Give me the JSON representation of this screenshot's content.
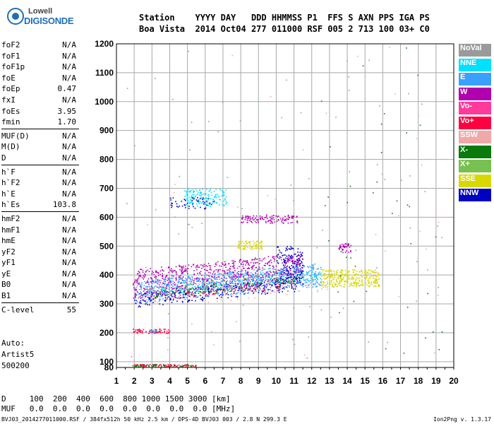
{
  "logo": {
    "line1": "Lowell",
    "line2": "DIGISONDE"
  },
  "header": {
    "labels": "Station    YYYY DAY   DDD HHMMSS P1  FFS S AXN PPS IGA PS",
    "values": "Boa Vista  2014 Oct04 277 011000 RSF 005 2 713 100 03+ C0"
  },
  "params": {
    "group1": [
      {
        "k": "foF2",
        "v": "N/A"
      },
      {
        "k": "foF1",
        "v": "N/A"
      },
      {
        "k": "foF1p",
        "v": "N/A"
      },
      {
        "k": "foE",
        "v": "N/A"
      },
      {
        "k": "foEp",
        "v": "0.47"
      },
      {
        "k": "fxI",
        "v": "N/A"
      },
      {
        "k": "foEs",
        "v": "3.95"
      },
      {
        "k": "fmin",
        "v": "1.70"
      }
    ],
    "group2": [
      {
        "k": "MUF(D)",
        "v": "N/A"
      },
      {
        "k": "M(D)",
        "v": "N/A"
      },
      {
        "k": "D",
        "v": "N/A"
      }
    ],
    "group3": [
      {
        "k": "h`F",
        "v": "N/A"
      },
      {
        "k": "h`F2",
        "v": "N/A"
      },
      {
        "k": "h`E",
        "v": "N/A"
      },
      {
        "k": "h`Es",
        "v": "103.8"
      }
    ],
    "group4": [
      {
        "k": "hmF2",
        "v": "N/A"
      },
      {
        "k": "hmF1",
        "v": "N/A"
      },
      {
        "k": "hmE",
        "v": "N/A"
      },
      {
        "k": "yF2",
        "v": "N/A"
      },
      {
        "k": "yF1",
        "v": "N/A"
      },
      {
        "k": "yE",
        "v": "N/A"
      },
      {
        "k": "B0",
        "v": "N/A"
      },
      {
        "k": "B1",
        "v": "N/A"
      }
    ],
    "group5": [
      {
        "k": "C-level",
        "v": "55"
      }
    ]
  },
  "auto": {
    "line1": "Auto:",
    "line2": "Artist5",
    "line3": "500200"
  },
  "legend": [
    {
      "label": "NoVal",
      "color": "#9a9a9a"
    },
    {
      "label": "NNE",
      "color": "#00e0ff"
    },
    {
      "label": "E",
      "color": "#3aa0ff"
    },
    {
      "label": "W",
      "color": "#b000b0"
    },
    {
      "label": "Vo-",
      "color": "#ff3a9a"
    },
    {
      "label": "Vo+",
      "color": "#ff0040"
    },
    {
      "label": "SSW",
      "color": "#f0a8a8"
    },
    {
      "label": "X-",
      "color": "#0a7a0a"
    },
    {
      "label": "X+",
      "color": "#78c050"
    },
    {
      "label": "SSE",
      "color": "#d8d800"
    },
    {
      "label": "NNW",
      "color": "#0000c0"
    }
  ],
  "bottom": {
    "line1": "D     100  200  400  600  800 1000 1500 3000 [km]",
    "line2": "MUF   0.0  0.0  0.0  0.0  0.0  0.0  0.0  0.0 [MHz]"
  },
  "footer": "BVJ03_2014277011000.RSF / 384fx512h 50 kHz 2.5 km / DPS-4D BVJ03 003 / 2.8 N 299.3 E",
  "version": "Ion2Png v. 1.3.17",
  "chart_data": {
    "type": "scatter",
    "title": "",
    "xlabel": "",
    "ylabel": "",
    "xlim": [
      1,
      20
    ],
    "ylim": [
      80,
      1200
    ],
    "xticks": [
      1,
      2,
      3,
      4,
      5,
      6,
      7,
      8,
      9,
      10,
      11,
      12,
      13,
      14,
      15,
      16,
      17,
      18,
      19,
      20
    ],
    "yticks": [
      80,
      100,
      200,
      300,
      400,
      500,
      600,
      700,
      800,
      900,
      1000,
      1100,
      1200
    ],
    "grid": true,
    "series": [
      {
        "name": "W",
        "color": "#b000b0",
        "regions": [
          {
            "x": [
              1.9,
              11.5
            ],
            "y": [
              320,
              420
            ],
            "n": 900
          },
          {
            "x": [
              8.0,
              11.2
            ],
            "y": [
              580,
              610
            ],
            "n": 120
          },
          {
            "x": [
              13.5,
              14.2
            ],
            "y": [
              480,
              510
            ],
            "n": 40
          }
        ]
      },
      {
        "name": "E",
        "color": "#3aa0ff",
        "regions": [
          {
            "x": [
              2.0,
              12.5
            ],
            "y": [
              300,
              380
            ],
            "n": 700
          },
          {
            "x": [
              2.8,
              3.3
            ],
            "y": [
              200,
              212
            ],
            "n": 30
          }
        ]
      },
      {
        "name": "NNE",
        "color": "#00e0ff",
        "regions": [
          {
            "x": [
              4.8,
              7.2
            ],
            "y": [
              640,
              700
            ],
            "n": 160
          },
          {
            "x": [
              3.5,
              12.5
            ],
            "y": [
              330,
              370
            ],
            "n": 200
          }
        ]
      },
      {
        "name": "NNW",
        "color": "#0000c0",
        "regions": [
          {
            "x": [
              2.0,
              11.5
            ],
            "y": [
              290,
              340
            ],
            "n": 250
          },
          {
            "x": [
              10.0,
              11.5
            ],
            "y": [
              380,
              500
            ],
            "n": 140
          },
          {
            "x": [
              4.0,
              6.5
            ],
            "y": [
              630,
              670
            ],
            "n": 50
          }
        ]
      },
      {
        "name": "SSE",
        "color": "#d8d800",
        "regions": [
          {
            "x": [
              12.5,
              15.8
            ],
            "y": [
              360,
              420
            ],
            "n": 320
          },
          {
            "x": [
              7.8,
              9.2
            ],
            "y": [
              490,
              520
            ],
            "n": 80
          }
        ]
      },
      {
        "name": "Vo+",
        "color": "#ff0040",
        "regions": [
          {
            "x": [
              1.9,
              4.0
            ],
            "y": [
              200,
              215
            ],
            "n": 60
          },
          {
            "x": [
              1.9,
              5.5
            ],
            "y": [
              82,
              92
            ],
            "n": 90
          },
          {
            "x": [
              3.0,
              11.0
            ],
            "y": [
              310,
              330
            ],
            "n": 80
          }
        ]
      },
      {
        "name": "X-",
        "color": "#0a7a0a",
        "regions": [
          {
            "x": [
              1.9,
              5.5
            ],
            "y": [
              82,
              92
            ],
            "n": 60
          },
          {
            "x": [
              3.0,
              11.5
            ],
            "y": [
              320,
              350
            ],
            "n": 80
          },
          {
            "x": [
              12.5,
              19.5
            ],
            "y": [
              100,
              1200
            ],
            "n": 40
          }
        ]
      },
      {
        "name": "X+",
        "color": "#78c050",
        "regions": [
          {
            "x": [
              2.5,
              11.5
            ],
            "y": [
              330,
              360
            ],
            "n": 60
          }
        ]
      },
      {
        "name": "SSW",
        "color": "#f0a8a8",
        "regions": [
          {
            "x": [
              2.0,
              13.0
            ],
            "y": [
              280,
              330
            ],
            "n": 60
          },
          {
            "x": [
              1.5,
              19.5
            ],
            "y": [
              100,
              1200
            ],
            "n": 40
          }
        ]
      },
      {
        "name": "NoVal",
        "color": "#9a9a9a",
        "regions": [
          {
            "x": [
              1.5,
              19.5
            ],
            "y": [
              100,
              1200
            ],
            "n": 80
          }
        ]
      }
    ]
  }
}
